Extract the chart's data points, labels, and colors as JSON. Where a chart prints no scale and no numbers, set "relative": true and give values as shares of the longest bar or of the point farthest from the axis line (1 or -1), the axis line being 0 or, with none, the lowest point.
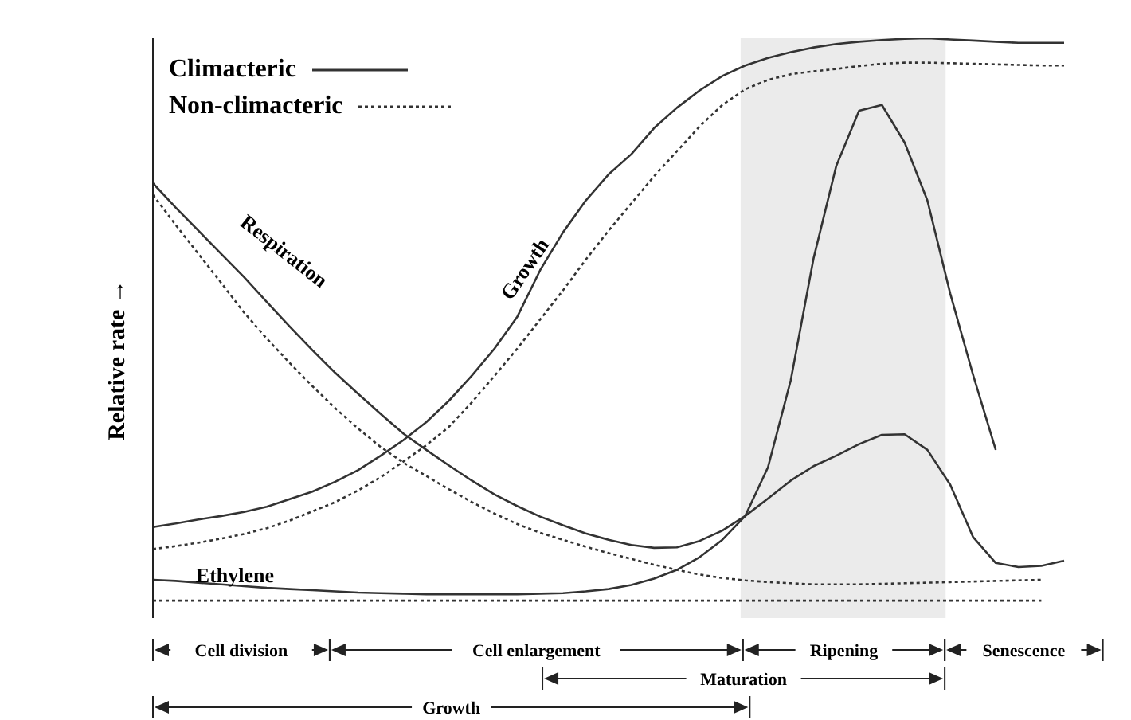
{
  "chart_data": {
    "type": "line",
    "relative": true,
    "ylabel": "Relative rate →",
    "grid": false,
    "legend": "top left",
    "marker": "none",
    "categories": [
      null,
      null,
      null,
      null,
      null,
      null,
      null,
      null,
      null,
      null,
      null,
      null,
      null,
      null,
      null,
      null,
      null,
      null,
      null,
      null,
      null,
      null,
      null,
      null,
      null,
      null,
      null,
      null,
      null,
      null,
      null,
      null,
      null,
      null,
      null,
      null,
      null,
      null,
      null,
      null,
      null
    ],
    "series": [
      {
        "name": "Climacteric",
        "color": "#333333",
        "line_style": "solid",
        "values": [
          0.157,
          0.163,
          0.17,
          0.176,
          0.183,
          0.192,
          0.205,
          0.218,
          0.235,
          0.255,
          0.28,
          0.307,
          0.338,
          0.375,
          0.418,
          0.465,
          0.52,
          0.6,
          0.665,
          0.72,
          0.765,
          0.8,
          0.845,
          0.88,
          0.91,
          0.935,
          0.953,
          0.966,
          0.976,
          0.984,
          0.99,
          0.994,
          0.997,
          0.999,
          1.0,
          0.998,
          0.996,
          0.994,
          0.992,
          0.992,
          0.992
        ]
      },
      {
        "name": "Non-climacteric",
        "color": "#333333",
        "line_style": "dotted",
        "values": [
          0.119,
          0.124,
          0.13,
          0.137,
          0.145,
          0.155,
          0.168,
          0.184,
          0.2,
          0.22,
          0.243,
          0.27,
          0.298,
          0.33,
          0.372,
          0.418,
          0.465,
          0.515,
          0.565,
          0.618,
          0.668,
          0.715,
          0.762,
          0.805,
          0.848,
          0.885,
          0.912,
          0.928,
          0.938,
          0.943,
          0.947,
          0.952,
          0.956,
          0.958,
          0.958,
          0.957,
          0.956,
          0.955,
          0.954,
          0.953,
          0.953
        ]
      },
      {
        "color": "#333333",
        "line_style": "solid",
        "values": [
          0.75,
          0.708,
          0.668,
          0.628,
          0.588,
          0.545,
          0.503,
          0.462,
          0.423,
          0.387,
          0.352,
          0.318,
          0.29,
          0.263,
          0.237,
          0.213,
          0.193,
          0.175,
          0.16,
          0.146,
          0.135,
          0.126,
          0.121,
          0.122,
          0.133,
          0.151,
          0.176,
          0.206,
          0.237,
          0.262,
          0.28,
          0.3,
          0.316,
          0.317,
          0.29,
          0.23,
          0.14,
          0.095,
          0.088,
          0.09,
          0.099
        ]
      },
      {
        "color": "#333333",
        "line_style": "dotted",
        "values": [
          0.73,
          0.678,
          0.628,
          0.578,
          0.527,
          0.482,
          0.44,
          0.4,
          0.362,
          0.327,
          0.295,
          0.268,
          0.245,
          0.222,
          0.2,
          0.18,
          0.162,
          0.147,
          0.135,
          0.123,
          0.112,
          0.102,
          0.092,
          0.083,
          0.075,
          0.069,
          0.065,
          0.062,
          0.06,
          0.058,
          0.058,
          0.058,
          0.059,
          0.06,
          0.061,
          0.062,
          0.063,
          0.064,
          0.065,
          0.066,
          null
        ]
      },
      {
        "color": "#333333",
        "line_style": "solid",
        "values": [
          0.066,
          0.064,
          0.061,
          0.058,
          0.055,
          0.052,
          0.05,
          0.048,
          0.046,
          0.044,
          0.043,
          0.042,
          0.041,
          0.041,
          0.041,
          0.041,
          0.041,
          0.042,
          0.043,
          0.046,
          0.05,
          0.057,
          0.068,
          0.083,
          0.105,
          0.135,
          0.176,
          0.26,
          0.41,
          0.62,
          0.78,
          0.875,
          0.885,
          0.82,
          0.72,
          0.56,
          0.42,
          0.29,
          null,
          null,
          null
        ]
      },
      {
        "color": "#333333",
        "line_style": "dotted",
        "values": [
          0.03,
          0.03,
          0.03,
          0.03,
          0.03,
          0.03,
          0.03,
          0.03,
          0.03,
          0.03,
          0.03,
          0.03,
          0.03,
          0.03,
          0.03,
          0.03,
          0.03,
          0.03,
          0.03,
          0.03,
          0.03,
          0.03,
          0.03,
          0.03,
          0.03,
          0.03,
          0.03,
          0.03,
          0.03,
          0.03,
          0.03,
          0.03,
          0.03,
          0.03,
          0.03,
          0.03,
          0.03,
          0.03,
          0.03,
          0.03,
          null
        ]
      }
    ],
    "annotations": [
      "Respiration",
      "Growth",
      "Ethylene",
      "Cell division",
      "Cell enlargement",
      "Ripening",
      "Senescence",
      "Maturation",
      "Growth"
    ]
  }
}
